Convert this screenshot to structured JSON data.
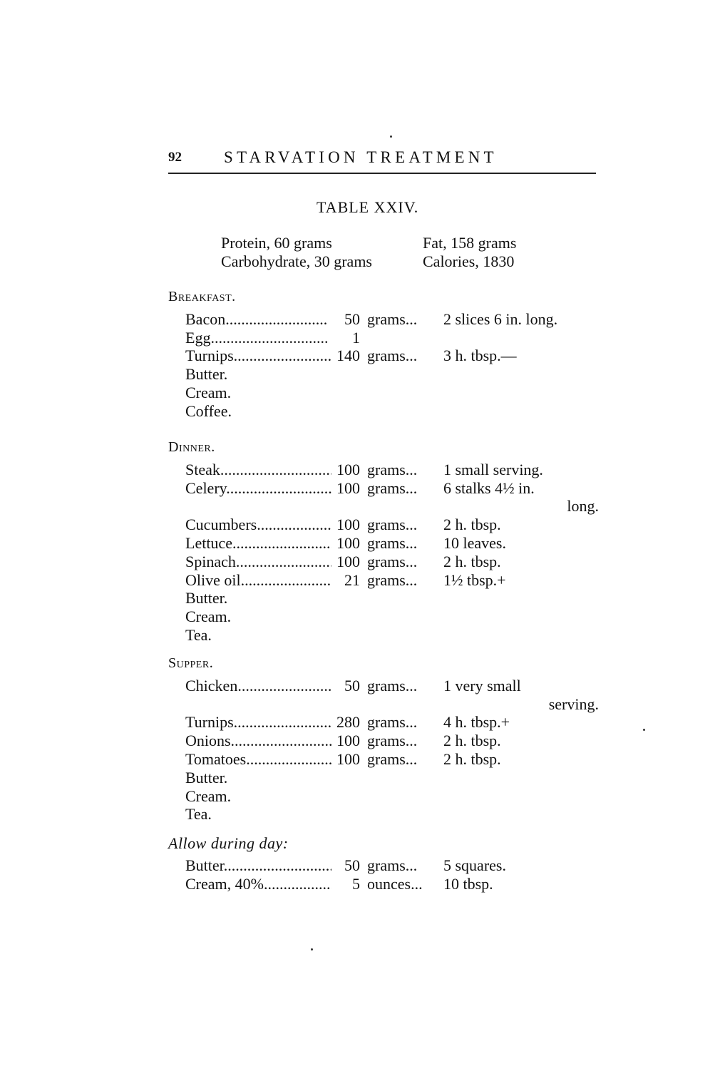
{
  "header": {
    "page_number": "92",
    "running_title": "STARVATION TREATMENT"
  },
  "table_title": "TABLE XXIV.",
  "summary": [
    [
      "Protein, 60 grams",
      "Fat, 158 grams"
    ],
    [
      "Carbohydrate, 30 grams",
      "Calories, 1830"
    ]
  ],
  "sections": [
    {
      "heading": "Breakfast.",
      "items": [
        {
          "label": "Bacon..........................",
          "amount": "50",
          "unit": "grams...",
          "note": "2 slices 6 in. long."
        },
        {
          "label": "Egg..............................",
          "amount": "1",
          "unit": "",
          "note": ""
        },
        {
          "label": "Turnips..........................",
          "amount": "140",
          "unit": "grams...",
          "note": "3 h. tbsp.—"
        },
        {
          "label": "Butter.",
          "amount": "",
          "unit": "",
          "note": ""
        },
        {
          "label": "Cream.",
          "amount": "",
          "unit": "",
          "note": ""
        },
        {
          "label": "Coffee.",
          "amount": "",
          "unit": "",
          "note": ""
        }
      ]
    },
    {
      "heading": "Dinner.",
      "items": [
        {
          "label": "Steak.............................",
          "amount": "100",
          "unit": "grams...",
          "note": "1 small serving."
        },
        {
          "label": "Celery............................",
          "amount": "100",
          "unit": "grams...",
          "note": "6 stalks 4½ in.",
          "cont": "long."
        },
        {
          "label": "Cucumbers.........................",
          "amount": "100",
          "unit": "grams...",
          "note": "2 h. tbsp."
        },
        {
          "label": "Lettuce...........................",
          "amount": "100",
          "unit": "grams...",
          "note": "10 leaves."
        },
        {
          "label": "Spinach...........................",
          "amount": "100",
          "unit": "grams...",
          "note": "2 h. tbsp."
        },
        {
          "label": "Olive oil.........................",
          "amount": "21",
          "unit": "grams...",
          "note": "1½ tbsp.+"
        },
        {
          "label": "Butter.",
          "amount": "",
          "unit": "",
          "note": ""
        },
        {
          "label": "Cream.",
          "amount": "",
          "unit": "",
          "note": ""
        },
        {
          "label": "Tea.",
          "amount": "",
          "unit": "",
          "note": ""
        }
      ]
    },
    {
      "heading": "Supper.",
      "items": [
        {
          "label": "Chicken...........................",
          "amount": "50",
          "unit": "grams...",
          "note": "1 very small",
          "cont": "serving."
        },
        {
          "label": "Turnips...........................",
          "amount": "280",
          "unit": "grams...",
          "note": "4 h. tbsp.+"
        },
        {
          "label": "Onions............................",
          "amount": "100",
          "unit": "grams...",
          "note": "2 h. tbsp."
        },
        {
          "label": "Tomatoes..........................",
          "amount": "100",
          "unit": "grams...",
          "note": "2 h. tbsp."
        },
        {
          "label": "Butter.",
          "amount": "",
          "unit": "",
          "note": ""
        },
        {
          "label": "Cream.",
          "amount": "",
          "unit": "",
          "note": ""
        },
        {
          "label": "Tea.",
          "amount": "",
          "unit": "",
          "note": ""
        }
      ]
    },
    {
      "heading": "Allow during day:",
      "items": [
        {
          "label": "Butter............................",
          "amount": "50",
          "unit": "grams...",
          "note": "5 squares."
        },
        {
          "label": "Cream, 40%........................",
          "amount": "5",
          "unit": "ounces...",
          "note": "10 tbsp."
        }
      ]
    }
  ]
}
